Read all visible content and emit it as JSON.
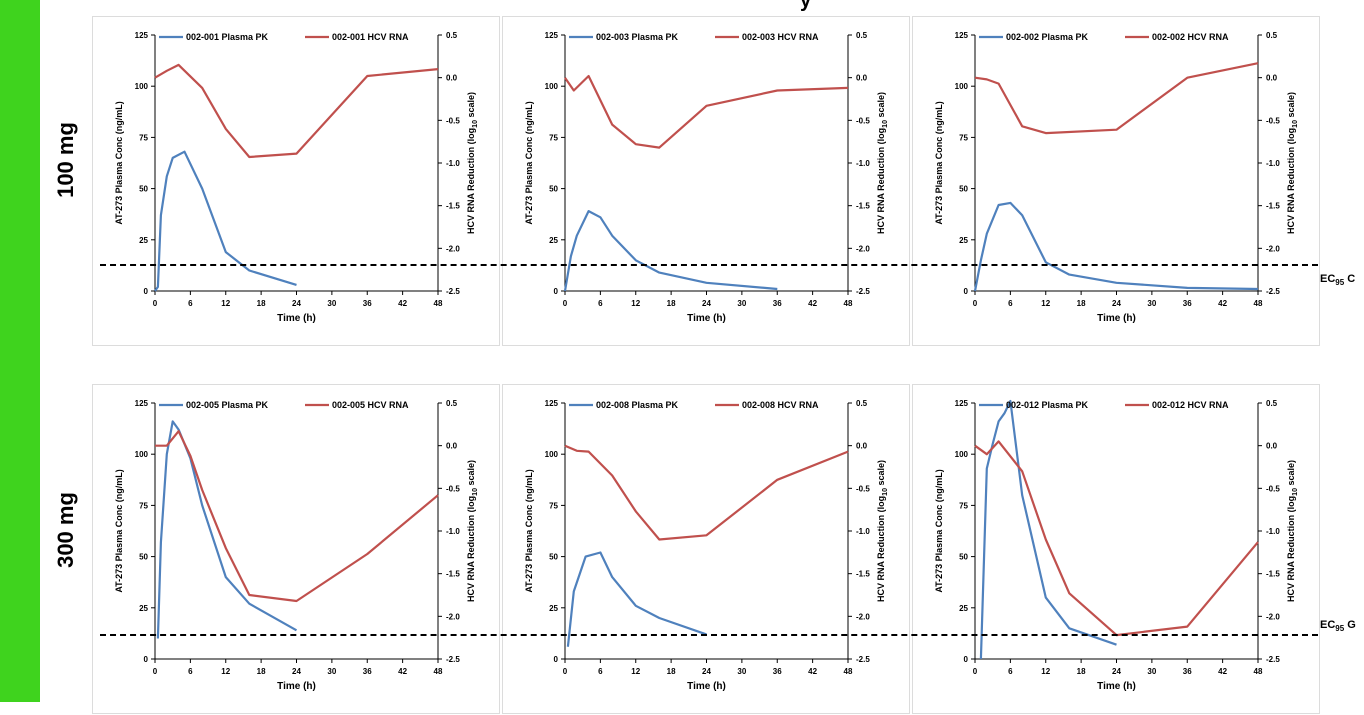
{
  "title_fragment": "y",
  "rows": [
    {
      "dose_label": "100 mg"
    },
    {
      "dose_label": "300 mg"
    }
  ],
  "ec95_label_prefix": "EC",
  "ec95_label_sub": "95",
  "ec95_label_suffix": " C",
  "ec95_label_suffix_2": " G",
  "colors": {
    "pk": "#4f81bd",
    "rna": "#c0504d",
    "accent": "#3fd31e"
  },
  "chart_data": [
    {
      "type": "line",
      "panel": "row1-col1",
      "xlabel": "Time (h)",
      "ylabel": "AT-273 Plasma Conc (ng/mL)",
      "y2label_prefix": "HCV RNA Reduction (log",
      "y2label_sub": "10",
      "y2label_suffix": " scale)",
      "xlim": [
        0,
        48
      ],
      "xticks": [
        0,
        6,
        12,
        18,
        24,
        30,
        36,
        42,
        48
      ],
      "ylim": [
        0,
        125
      ],
      "yticks": [
        0,
        25,
        50,
        75,
        100,
        125
      ],
      "y2lim": [
        -2.5,
        0.5
      ],
      "y2ticks": [
        "0.5",
        "0.0",
        "-0.5",
        "-1.0",
        "-1.5",
        "-2.0",
        "-2.5"
      ],
      "series": [
        {
          "name": "002-001 Plasma PK",
          "axis": "left",
          "x": [
            0,
            0.5,
            1,
            2,
            3,
            5,
            8,
            12,
            16,
            24
          ],
          "y": [
            0,
            2,
            37,
            56,
            65,
            68,
            50,
            19,
            10,
            3
          ]
        },
        {
          "name": "002-001 HCV RNA",
          "axis": "right",
          "x": [
            0,
            2,
            4,
            8,
            12,
            16,
            24,
            36,
            48
          ],
          "y": [
            0.0,
            0.08,
            0.15,
            -0.12,
            -0.6,
            -0.93,
            -0.89,
            0.02,
            0.1
          ]
        }
      ]
    },
    {
      "type": "line",
      "panel": "row1-col2",
      "xlabel": "Time (h)",
      "ylabel": "AT-273 Plasma Conc (ng/mL)",
      "y2label_prefix": "HCV RNA Reduction (log",
      "y2label_sub": "10",
      "y2label_suffix": " scale)",
      "xlim": [
        0,
        48
      ],
      "xticks": [
        0,
        6,
        12,
        18,
        24,
        30,
        36,
        42,
        48
      ],
      "ylim": [
        0,
        125
      ],
      "yticks": [
        0,
        25,
        50,
        75,
        100,
        125
      ],
      "y2lim": [
        -2.5,
        0.5
      ],
      "y2ticks": [
        "0.5",
        "0.0",
        "-0.5",
        "-1.0",
        "-1.5",
        "-2.0",
        "-2.5"
      ],
      "series": [
        {
          "name": "002-003 Plasma PK",
          "axis": "left",
          "x": [
            0,
            1,
            2,
            4,
            6,
            8,
            12,
            16,
            24,
            36
          ],
          "y": [
            0,
            17,
            27,
            39,
            36,
            27,
            15,
            9,
            4,
            1
          ]
        },
        {
          "name": "002-003 HCV RNA",
          "axis": "right",
          "x": [
            0,
            1.5,
            4,
            8,
            12,
            16,
            24,
            36,
            48
          ],
          "y": [
            0.0,
            -0.15,
            0.02,
            -0.55,
            -0.78,
            -0.82,
            -0.33,
            -0.15,
            -0.12
          ]
        }
      ]
    },
    {
      "type": "line",
      "panel": "row1-col3",
      "xlabel": "Time (h)",
      "ylabel": "AT-273 Plasma Conc (ng/mL)",
      "y2label_prefix": "HCV RNA Reduction (log",
      "y2label_sub": "10",
      "y2label_suffix": " scale)",
      "xlim": [
        0,
        48
      ],
      "xticks": [
        0,
        6,
        12,
        18,
        24,
        30,
        36,
        42,
        48
      ],
      "ylim": [
        0,
        125
      ],
      "yticks": [
        0,
        25,
        50,
        75,
        100,
        125
      ],
      "y2lim": [
        -2.5,
        0.5
      ],
      "y2ticks": [
        "0.5",
        "0.0",
        "-0.5",
        "-1.0",
        "-1.5",
        "-2.0",
        "-2.5"
      ],
      "series": [
        {
          "name": "002-002 Plasma PK",
          "axis": "left",
          "x": [
            0,
            1,
            2,
            4,
            6,
            8,
            12,
            16,
            24,
            36,
            48
          ],
          "y": [
            0,
            15,
            28,
            42,
            43,
            37,
            14,
            8,
            4,
            1.5,
            1
          ]
        },
        {
          "name": "002-002 HCV RNA",
          "axis": "right",
          "x": [
            0,
            2,
            4,
            8,
            12,
            24,
            36,
            48
          ],
          "y": [
            0.0,
            -0.02,
            -0.07,
            -0.57,
            -0.65,
            -0.61,
            0.0,
            0.17
          ]
        }
      ]
    },
    {
      "type": "line",
      "panel": "row2-col1",
      "xlabel": "Time (h)",
      "ylabel": "AT-273 Plasma Conc (ng/mL)",
      "y2label_prefix": "HCV RNA Reduction (log",
      "y2label_sub": "10",
      "y2label_suffix": " scale)",
      "xlim": [
        0,
        48
      ],
      "xticks": [
        0,
        6,
        12,
        18,
        24,
        30,
        36,
        42,
        48
      ],
      "ylim": [
        0,
        125
      ],
      "yticks": [
        0,
        25,
        50,
        75,
        100,
        125
      ],
      "y2lim": [
        -2.5,
        0.5
      ],
      "y2ticks": [
        "0.5",
        "0.0",
        "-0.5",
        "-1.0",
        "-1.5",
        "-2.0",
        "-2.5"
      ],
      "series": [
        {
          "name": "002-005 Plasma PK",
          "axis": "left",
          "x": [
            0.5,
            1,
            2,
            3,
            4,
            6,
            8,
            12,
            16,
            24
          ],
          "y": [
            10,
            57,
            100,
            116,
            112,
            98,
            75,
            40,
            27,
            14
          ]
        },
        {
          "name": "002-005 HCV RNA",
          "axis": "right",
          "x": [
            0,
            2,
            4,
            6,
            8,
            12,
            16,
            24,
            36,
            48
          ],
          "y": [
            0.0,
            0.0,
            0.17,
            -0.12,
            -0.52,
            -1.2,
            -1.75,
            -1.82,
            -1.27,
            -0.58
          ]
        }
      ]
    },
    {
      "type": "line",
      "panel": "row2-col2",
      "xlabel": "Time (h)",
      "ylabel": "AT-273 Plasma Conc (ng/mL)",
      "y2label_prefix": "HCV RNA Reduction (log",
      "y2label_sub": "10",
      "y2label_suffix": " scale)",
      "xlim": [
        0,
        48
      ],
      "xticks": [
        0,
        6,
        12,
        18,
        24,
        30,
        36,
        42,
        48
      ],
      "ylim": [
        0,
        125
      ],
      "yticks": [
        0,
        25,
        50,
        75,
        100,
        125
      ],
      "y2lim": [
        -2.5,
        0.5
      ],
      "y2ticks": [
        "0.5",
        "0.0",
        "-0.5",
        "-1.0",
        "-1.5",
        "-2.0",
        "-2.5"
      ],
      "series": [
        {
          "name": "002-008 Plasma PK",
          "axis": "left",
          "x": [
            0.5,
            1.5,
            3.5,
            6,
            8,
            12,
            16,
            24
          ],
          "y": [
            6,
            33,
            50,
            52,
            40,
            26,
            20,
            12
          ]
        },
        {
          "name": "002-008 HCV RNA",
          "axis": "right",
          "x": [
            0,
            2,
            4,
            8,
            12,
            16,
            24,
            36,
            48
          ],
          "y": [
            0.0,
            -0.06,
            -0.07,
            -0.35,
            -0.77,
            -1.1,
            -1.05,
            -0.4,
            -0.07
          ]
        }
      ]
    },
    {
      "type": "line",
      "panel": "row2-col3",
      "xlabel": "Time (h)",
      "ylabel": "AT-273 Plasma Conc (ng/mL)",
      "y2label_prefix": "HCV RNA Reduction (log",
      "y2label_sub": "10",
      "y2label_suffix": " scale)",
      "xlim": [
        0,
        48
      ],
      "xticks": [
        0,
        6,
        12,
        18,
        24,
        30,
        36,
        42,
        48
      ],
      "ylim": [
        0,
        125
      ],
      "yticks": [
        0,
        25,
        50,
        75,
        100,
        125
      ],
      "y2lim": [
        -2.5,
        0.5
      ],
      "y2ticks": [
        "0.5",
        "0.0",
        "-0.5",
        "-1.0",
        "-1.5",
        "-2.0",
        "-2.5"
      ],
      "series": [
        {
          "name": "002-012 Plasma PK",
          "axis": "left",
          "x": [
            1,
            2,
            3,
            4,
            5,
            6,
            8,
            12,
            16,
            24
          ],
          "y": [
            0,
            93,
            105,
            116,
            120,
            126,
            80,
            30,
            15,
            7
          ]
        },
        {
          "name": "002-012 HCV RNA",
          "axis": "right",
          "x": [
            0,
            2,
            4,
            8,
            12,
            16,
            24,
            36,
            48
          ],
          "y": [
            0.0,
            -0.1,
            0.05,
            -0.3,
            -1.1,
            -1.73,
            -2.22,
            -2.12,
            -1.13
          ]
        }
      ]
    }
  ]
}
